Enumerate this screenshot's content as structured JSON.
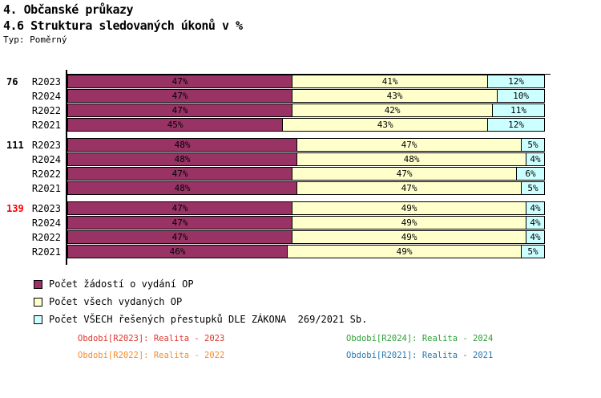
{
  "header": {
    "title1": "4. Občanské průkazy",
    "title2": "4.6 Struktura sledovaných úkonů v %",
    "type_label": "Typ: Poměrný"
  },
  "chart_data": {
    "type": "bar",
    "orientation": "horizontal",
    "stacked": true,
    "value_unit": "%",
    "xlim": [
      0,
      100
    ],
    "grid": false,
    "series": [
      {
        "name": "Počet žádostí o vydání OP",
        "color": "#993366"
      },
      {
        "name": "Počet všech vydaných OP",
        "color": "#FFFFCC"
      },
      {
        "name": "Počet VŠECH řešených přestupků DLE ZÁKONA  269/2021 Sb.",
        "color": "#CCFFFF"
      }
    ],
    "groups": [
      {
        "label": "76",
        "label_color": "#000000",
        "rows": [
          {
            "period": "R2023",
            "values": [
              47,
              41,
              12
            ]
          },
          {
            "period": "R2024",
            "values": [
              47,
              43,
              10
            ]
          },
          {
            "period": "R2022",
            "values": [
              47,
              42,
              11
            ]
          },
          {
            "period": "R2021",
            "values": [
              45,
              43,
              12
            ]
          }
        ]
      },
      {
        "label": "111",
        "label_color": "#000000",
        "rows": [
          {
            "period": "R2023",
            "values": [
              48,
              47,
              5
            ]
          },
          {
            "period": "R2024",
            "values": [
              48,
              48,
              4
            ]
          },
          {
            "period": "R2022",
            "values": [
              47,
              47,
              6
            ]
          },
          {
            "period": "R2021",
            "values": [
              48,
              47,
              5
            ]
          }
        ]
      },
      {
        "label": "139",
        "label_color": "#ff0000",
        "rows": [
          {
            "period": "R2023",
            "values": [
              47,
              49,
              4
            ]
          },
          {
            "period": "R2024",
            "values": [
              47,
              49,
              4
            ]
          },
          {
            "period": "R2022",
            "values": [
              47,
              49,
              4
            ]
          },
          {
            "period": "R2021",
            "values": [
              46,
              49,
              5
            ]
          }
        ]
      }
    ]
  },
  "legend": {
    "items": [
      {
        "label": "Počet žádostí o vydání OP",
        "color": "#993366"
      },
      {
        "label": "Počet všech vydaných OP",
        "color": "#FFFFCC"
      },
      {
        "label": "Počet VŠECH řešených přestupků DLE ZÁKONA  269/2021 Sb.",
        "color": "#CCFFFF"
      }
    ]
  },
  "footnotes": {
    "items": [
      {
        "text": "Období[R2023]: Realita - 2023",
        "color": "#de352c"
      },
      {
        "text": "Období[R2024]: Realita - 2024",
        "color": "#2f9e38"
      },
      {
        "text": "Období[R2022]: Realita - 2022",
        "color": "#f68c2c"
      },
      {
        "text": "Období[R2021]: Realita - 2021",
        "color": "#2778ac"
      }
    ]
  }
}
